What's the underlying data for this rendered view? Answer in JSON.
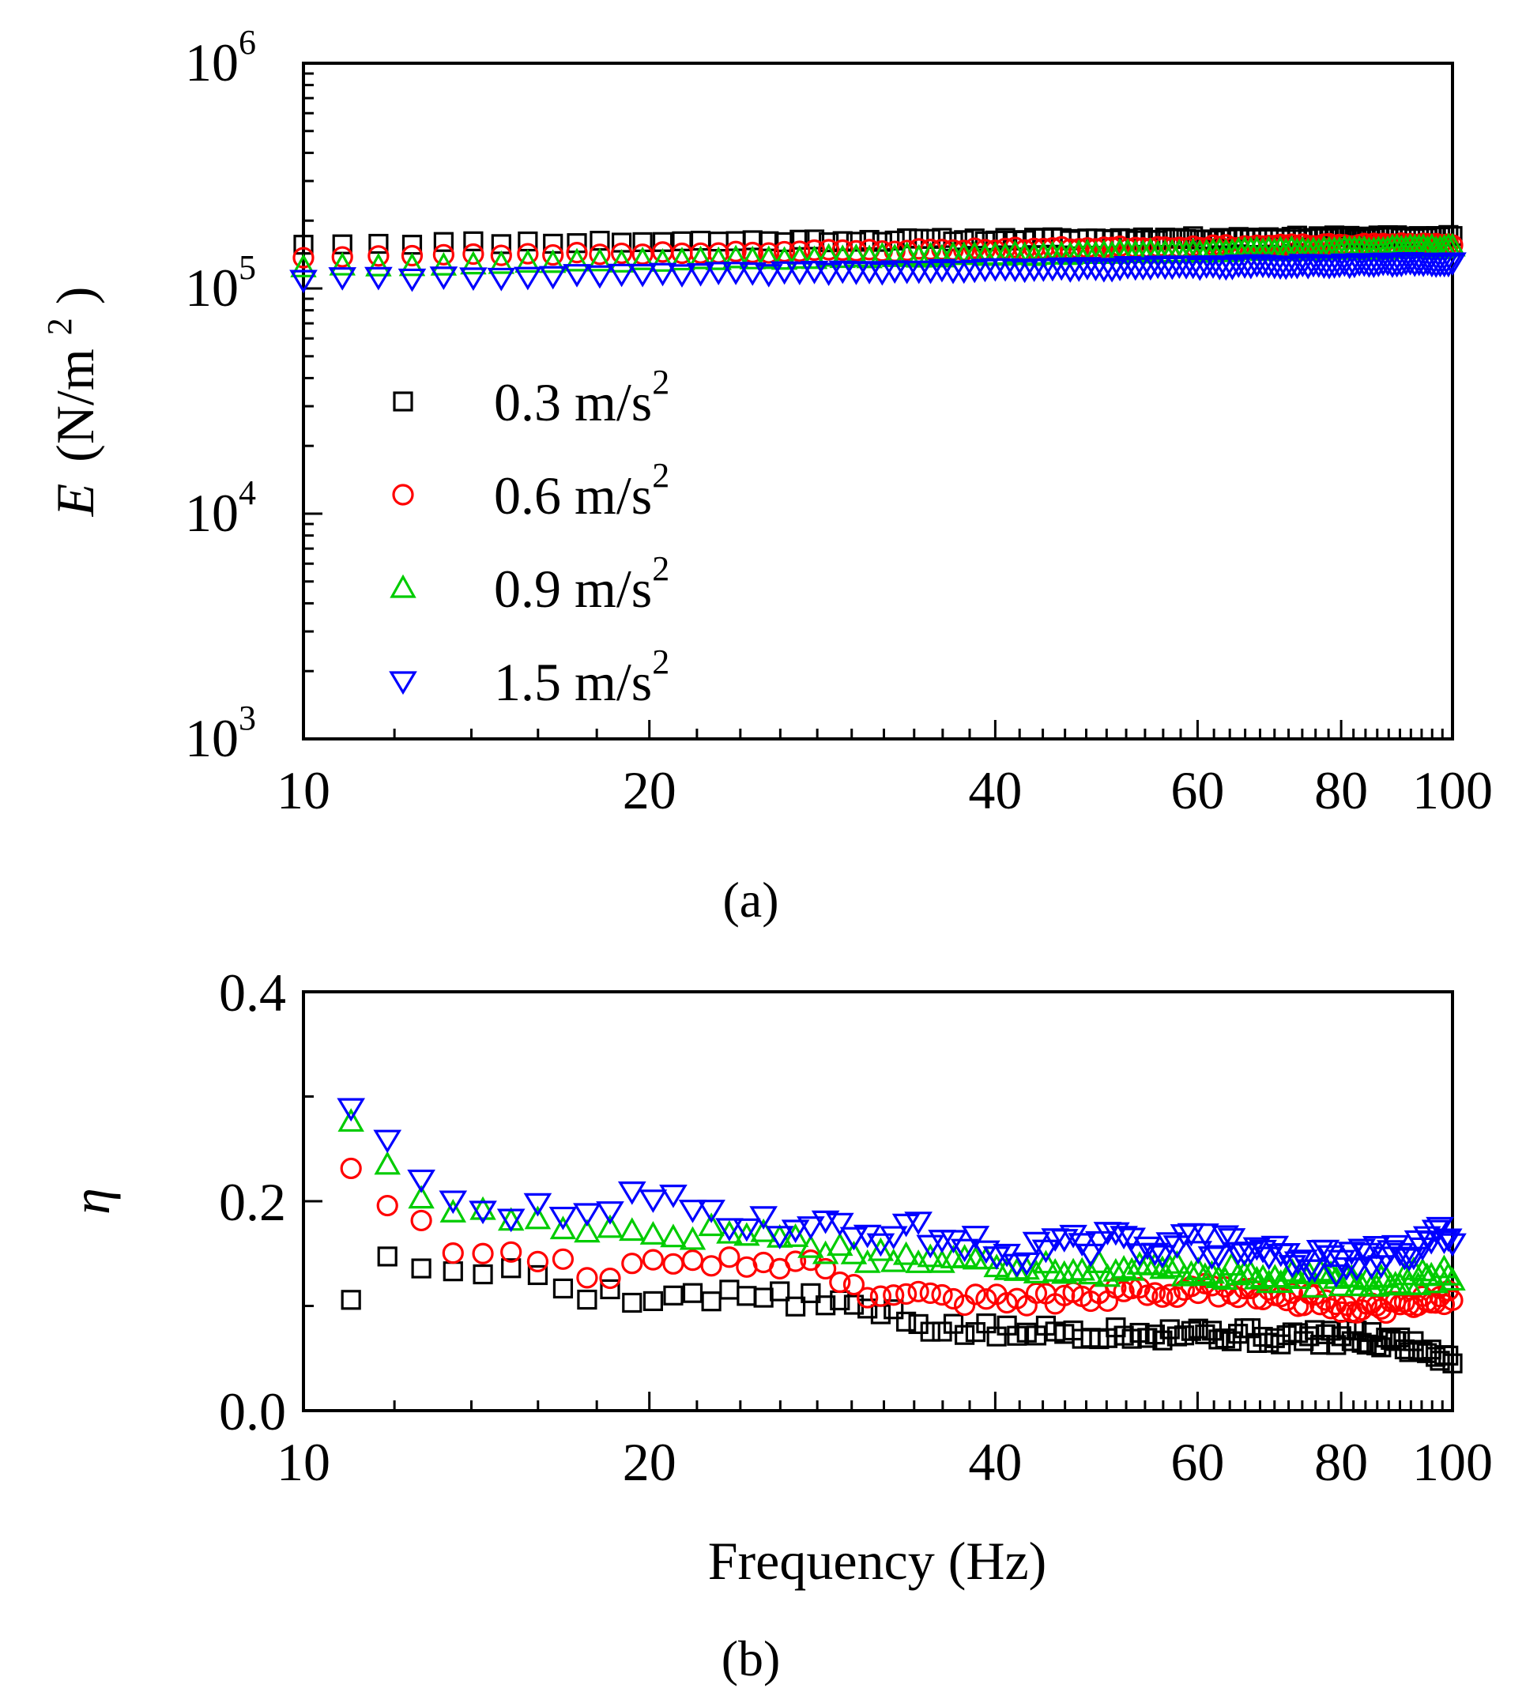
{
  "figure": {
    "panel_a_label": "(a)",
    "panel_b_label": "(b)"
  },
  "chart_data": [
    {
      "type": "scatter",
      "panel": "a",
      "title": "",
      "xlabel": "",
      "ylabel": "E (N/m²)",
      "ylabel_symbol": "E",
      "ylabel_unit": "(N/m",
      "ylabel_sup": "2",
      "ylabel_close": ")",
      "xscale": "log",
      "yscale": "log",
      "xlim": [
        10,
        100
      ],
      "ylim": [
        1000,
        1000000
      ],
      "xticks": [
        10,
        20,
        40,
        60,
        80,
        100
      ],
      "xtick_labels": [
        "10",
        "20",
        "40",
        "60",
        "80",
        "100"
      ],
      "yticks": [
        1000,
        10000,
        100000,
        1000000
      ],
      "ytick_bases": [
        "10",
        "10",
        "10",
        "10"
      ],
      "ytick_exps": [
        "3",
        "4",
        "5",
        "6"
      ],
      "legend_position": "center-left",
      "series": [
        {
          "name": "0.3 m/s",
          "name_sup": "2",
          "marker": "square",
          "color": "#000000",
          "f_start": 10,
          "f_end": 100,
          "count": 112,
          "v_start": 158000,
          "v_end": 170000,
          "noise": 0.04,
          "seed": 11
        },
        {
          "name": "0.6 m/s",
          "name_sup": "2",
          "marker": "circle",
          "color": "#ff0000",
          "f_start": 10,
          "f_end": 100,
          "count": 112,
          "v_start": 138000,
          "v_end": 158000,
          "noise": 0.03,
          "seed": 23
        },
        {
          "name": "0.9 m/s",
          "name_sup": "2",
          "marker": "triangle-up",
          "color": "#00cc00",
          "f_start": 10,
          "f_end": 100,
          "count": 112,
          "v_start": 125000,
          "v_end": 152000,
          "noise": 0.03,
          "seed": 37
        },
        {
          "name": "1.5 m/s",
          "name_sup": "2",
          "marker": "triangle-down",
          "color": "#0000ff",
          "f_start": 10,
          "f_end": 100,
          "count": 112,
          "v_start": 110000,
          "v_end": 130000,
          "noise": 0.03,
          "seed": 41
        }
      ]
    },
    {
      "type": "scatter",
      "panel": "b",
      "title": "",
      "xlabel": "Frequency (Hz)",
      "ylabel": "η",
      "xscale": "log",
      "yscale": "linear",
      "xlim": [
        10,
        100
      ],
      "ylim": [
        0.0,
        0.4
      ],
      "xticks": [
        10,
        20,
        40,
        60,
        80,
        100
      ],
      "xtick_labels": [
        "10",
        "20",
        "40",
        "60",
        "80",
        "100"
      ],
      "yticks": [
        0.0,
        0.2,
        0.4
      ],
      "ytick_labels": [
        "0.0",
        "0.2",
        "0.4"
      ],
      "series": [
        {
          "name": "0.3 m/s",
          "name_sup": "2",
          "marker": "square",
          "color": "#000000",
          "f_start": 11,
          "f_end": 100,
          "count": 108,
          "anchors": [
            [
              11,
              0.11
            ],
            [
              12,
              0.15
            ],
            [
              13,
              0.135
            ],
            [
              14,
              0.12
            ],
            [
              15,
              0.14
            ],
            [
              18,
              0.11
            ],
            [
              25,
              0.11
            ],
            [
              30,
              0.1
            ],
            [
              35,
              0.08
            ],
            [
              40,
              0.075
            ],
            [
              50,
              0.075
            ],
            [
              60,
              0.075
            ],
            [
              70,
              0.07
            ],
            [
              80,
              0.07
            ],
            [
              90,
              0.065
            ],
            [
              100,
              0.05
            ]
          ],
          "noise": 0.008,
          "seed": 5
        },
        {
          "name": "0.6 m/s",
          "name_sup": "2",
          "marker": "circle",
          "color": "#ff0000",
          "f_start": 11,
          "f_end": 100,
          "count": 108,
          "anchors": [
            [
              11,
              0.235
            ],
            [
              12,
              0.195
            ],
            [
              13,
              0.165
            ],
            [
              14,
              0.15
            ],
            [
              15,
              0.155
            ],
            [
              18,
              0.13
            ],
            [
              22,
              0.145
            ],
            [
              28,
              0.14
            ],
            [
              30,
              0.115
            ],
            [
              40,
              0.105
            ],
            [
              50,
              0.11
            ],
            [
              60,
              0.115
            ],
            [
              70,
              0.11
            ],
            [
              80,
              0.1
            ],
            [
              90,
              0.1
            ],
            [
              100,
              0.11
            ]
          ],
          "noise": 0.007,
          "seed": 9
        },
        {
          "name": "0.9 m/s",
          "name_sup": "2",
          "marker": "triangle-up",
          "color": "#00cc00",
          "f_start": 11,
          "f_end": 100,
          "count": 108,
          "anchors": [
            [
              11,
              0.28
            ],
            [
              12,
              0.22
            ],
            [
              13,
              0.195
            ],
            [
              14,
              0.19
            ],
            [
              16,
              0.18
            ],
            [
              20,
              0.17
            ],
            [
              25,
              0.17
            ],
            [
              30,
              0.15
            ],
            [
              40,
              0.14
            ],
            [
              50,
              0.135
            ],
            [
              60,
              0.135
            ],
            [
              70,
              0.125
            ],
            [
              80,
              0.125
            ],
            [
              90,
              0.125
            ],
            [
              100,
              0.13
            ]
          ],
          "noise": 0.008,
          "seed": 17
        },
        {
          "name": "1.5 m/s",
          "name_sup": "2",
          "marker": "triangle-down",
          "color": "#0000ff",
          "f_start": 11,
          "f_end": 100,
          "count": 108,
          "anchors": [
            [
              11,
              0.295
            ],
            [
              12,
              0.24
            ],
            [
              13,
              0.205
            ],
            [
              14,
              0.185
            ],
            [
              16,
              0.19
            ],
            [
              20,
              0.2
            ],
            [
              25,
              0.18
            ],
            [
              30,
              0.17
            ],
            [
              35,
              0.17
            ],
            [
              40,
              0.15
            ],
            [
              50,
              0.16
            ],
            [
              60,
              0.16
            ],
            [
              70,
              0.15
            ],
            [
              80,
              0.14
            ],
            [
              90,
              0.15
            ],
            [
              100,
              0.17
            ]
          ],
          "noise": 0.012,
          "seed": 29
        }
      ]
    }
  ]
}
